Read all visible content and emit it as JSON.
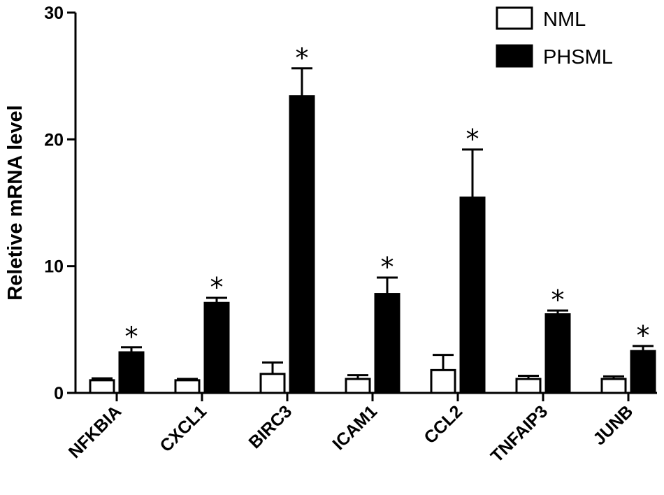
{
  "chart_data": {
    "type": "bar",
    "title": "",
    "xlabel": "",
    "ylabel": "Reletive mRNA level",
    "ylim": [
      0,
      30
    ],
    "yticks": [
      0,
      10,
      20,
      30
    ],
    "grid": false,
    "legend_position": "top-right",
    "categories": [
      "NFKBIA",
      "CXCL1",
      "BIRC3",
      "ICAM1",
      "CCL2",
      "TNFAIP3",
      "JUNB"
    ],
    "series": [
      {
        "name": "NML",
        "fill": "#ffffff",
        "stroke": "#000000",
        "values": [
          1.0,
          1.0,
          1.5,
          1.1,
          1.8,
          1.1,
          1.1
        ],
        "errors": [
          0.15,
          0.1,
          0.9,
          0.3,
          1.2,
          0.25,
          0.2
        ]
      },
      {
        "name": "PHSML",
        "fill": "#000000",
        "stroke": "#000000",
        "values": [
          3.2,
          7.1,
          23.4,
          7.8,
          15.4,
          6.2,
          3.3
        ],
        "errors": [
          0.4,
          0.4,
          2.2,
          1.3,
          3.8,
          0.3,
          0.4
        ]
      }
    ],
    "annotations": [
      "*",
      "*",
      "*",
      "*",
      "*",
      "*",
      "*"
    ]
  }
}
